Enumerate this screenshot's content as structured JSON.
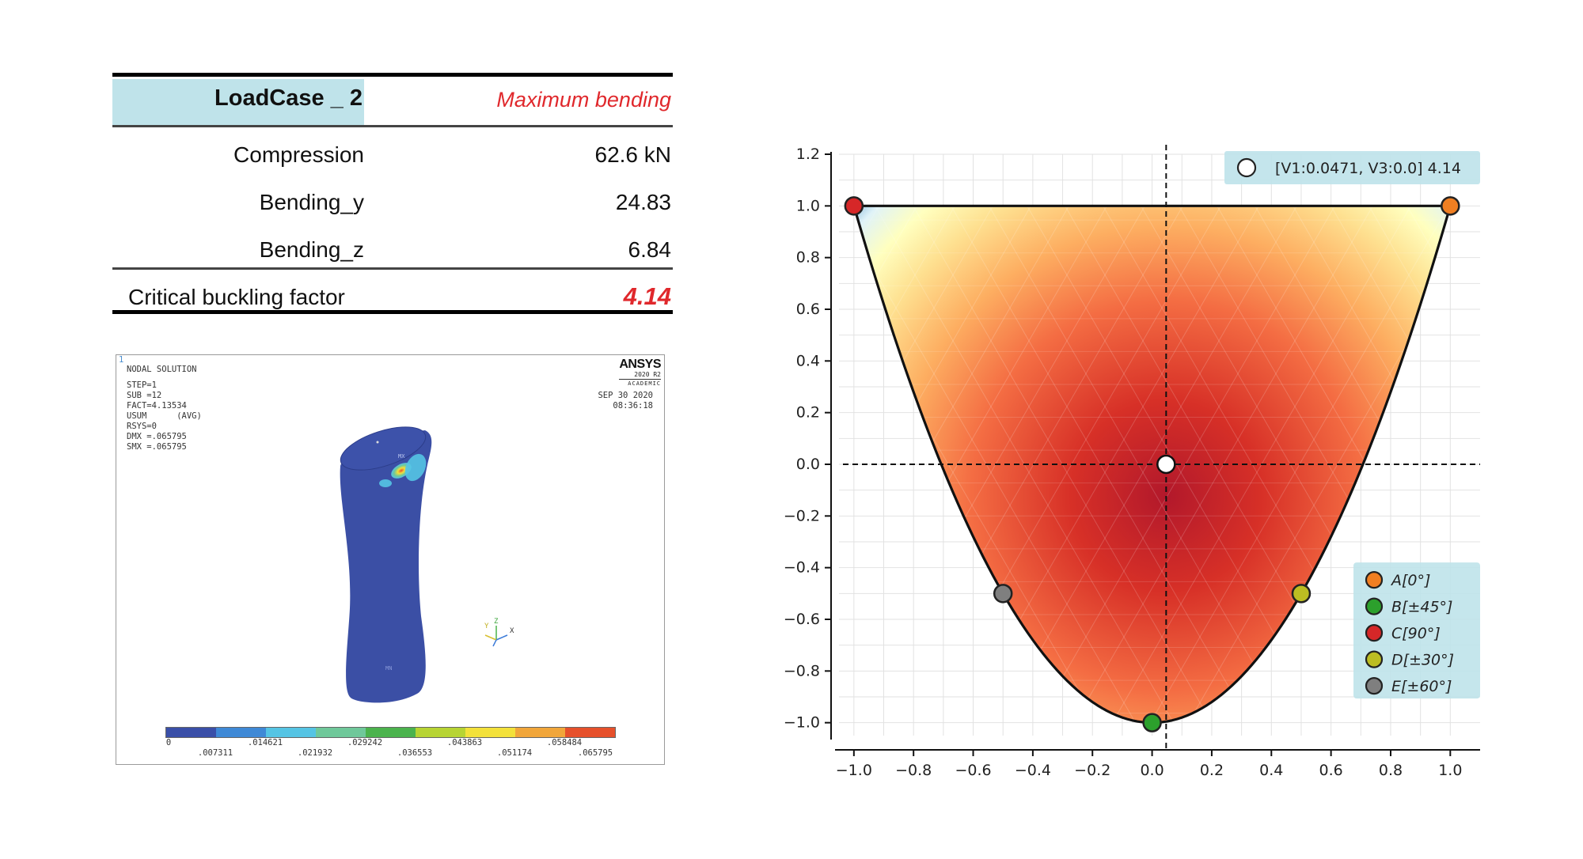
{
  "table": {
    "header_label": "LoadCase _ 2",
    "header_value": "Maximum bending",
    "rows": [
      {
        "label": "Compression",
        "value": "62.6 kN"
      },
      {
        "label": "Bending_y",
        "value": "24.83"
      },
      {
        "label": "Bending_z",
        "value": "6.84"
      }
    ],
    "critical_label": "Critical buckling factor",
    "critical_value": "4.14"
  },
  "ansys": {
    "corner_index": "1",
    "title": "NODAL SOLUTION",
    "info_lines": [
      "STEP=1",
      "SUB =12",
      "FACT=4.13534",
      "USUM      (AVG)",
      "RSYS=0",
      "DMX =.065795",
      "SMX =.065795"
    ],
    "logo_name": "ANSYS",
    "logo_version": "2020 R2",
    "logo_edition": "ACADEMIC",
    "date": "SEP 30 2020",
    "time": "08:36:18",
    "mx_label": "MX",
    "mn_label": "MN",
    "axis_labels": {
      "y": "Y",
      "z": "Z",
      "x": "X"
    },
    "colorbar_colors": [
      "#3a4fa8",
      "#3f89d6",
      "#55c4e4",
      "#6fc89a",
      "#4bb34d",
      "#b7d433",
      "#f3e13a",
      "#f1a63a",
      "#e6502b"
    ],
    "colorbar_labels_top": [
      "0",
      ".014621",
      ".029242",
      ".043863",
      ".058484"
    ],
    "colorbar_labels_bottom": [
      ".007311",
      ".021932",
      ".036553",
      ".051174",
      ".065795"
    ]
  },
  "chart_data": {
    "type": "heatmap",
    "title": "",
    "xlabel": "",
    "ylabel": "",
    "xlim": [
      -1.05,
      1.1
    ],
    "ylim": [
      -1.05,
      1.2
    ],
    "x_ticks": [
      -1.0,
      -0.8,
      -0.6,
      -0.4,
      -0.2,
      0.0,
      0.2,
      0.4,
      0.6,
      0.8,
      1.0
    ],
    "y_ticks": [
      -1.0,
      -0.8,
      -0.6,
      -0.4,
      -0.2,
      0.0,
      0.2,
      0.4,
      0.6,
      0.8,
      1.0,
      1.2
    ],
    "x_tick_labels": [
      "−1.0",
      "−0.8",
      "−0.6",
      "−0.4",
      "−0.2",
      "0.0",
      "0.2",
      "0.4",
      "0.6",
      "0.8",
      "1.0"
    ],
    "y_tick_labels": [
      "−1.0",
      "−0.8",
      "−0.6",
      "−0.4",
      "−0.2",
      "0.0",
      "0.2",
      "0.4",
      "0.6",
      "0.8",
      "1.0",
      "1.2"
    ],
    "grid": true,
    "colormap": "RdYlBu_r",
    "domain_boundary": "V3 = 2*V1^2 - 1, |V1| <= 1, V3 <= 1",
    "optimum": {
      "V1": 0.0471,
      "V3": 0.0,
      "value": 4.14
    },
    "optimum_label": "[V1:0.0471, V3:0.0] 4.14",
    "crosshair": {
      "x": 0.0471,
      "y": 0.0
    },
    "points": [
      {
        "name": "A[0°]",
        "x": 1.0,
        "y": 1.0,
        "color": "#f07f22"
      },
      {
        "name": "B[±45°]",
        "x": 0.0,
        "y": -1.0,
        "color": "#2ca02c"
      },
      {
        "name": "C[90°]",
        "x": -1.0,
        "y": 1.0,
        "color": "#d62728"
      },
      {
        "name": "D[±30°]",
        "x": 0.5,
        "y": -0.5,
        "color": "#bcbd22"
      },
      {
        "name": "E[±60°]",
        "x": -0.5,
        "y": -0.5,
        "color": "#7f7f7f"
      }
    ],
    "legend_position": "lower-right",
    "legend_bg": "#bfe3ea"
  }
}
